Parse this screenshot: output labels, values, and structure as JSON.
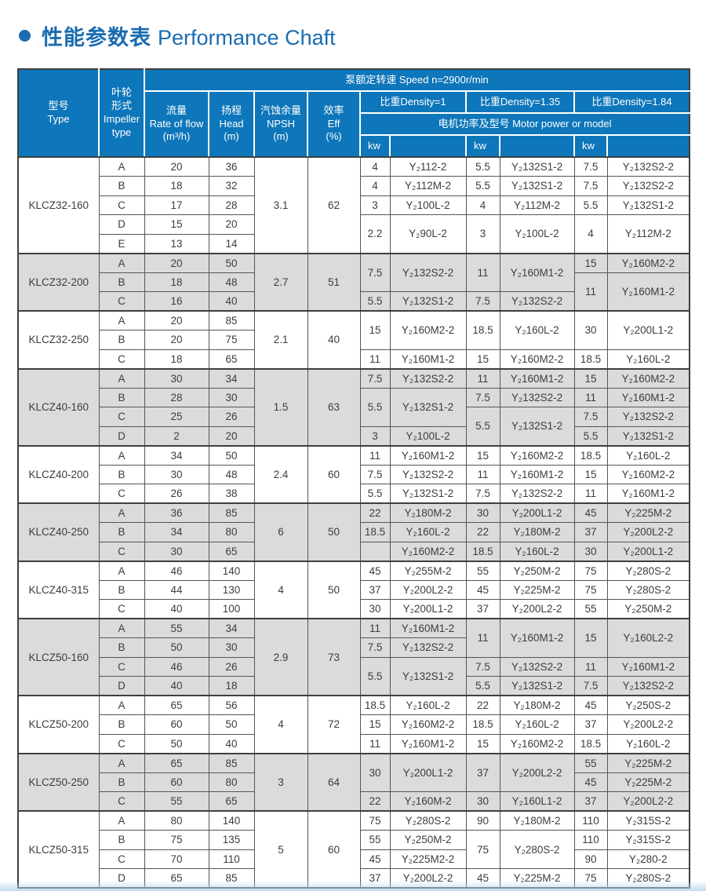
{
  "page": {
    "title_cn": "性能参数表",
    "title_en": "Performance Chaft",
    "accent_color": "#1a6cb0",
    "header_bg": "#0e76ba",
    "shade_color": "#dbdbdb"
  },
  "table": {
    "speed_header": "泵额定转速 Speed n=2900r/min",
    "col_type": "型号\nType",
    "col_impeller": "叶轮\n形式\nImpeller\ntype",
    "col_flow": "流量\nRate of flow\n(m³/h)",
    "col_head": "扬程\nHead\n(m)",
    "col_npsh": "汽蚀余量\nNPSH\n(m)",
    "col_eff": "效率\nEff\n(%)",
    "density_headers": [
      "比重Density=1",
      "比重Density=1.35",
      "比重Density=1.84"
    ],
    "motor_header": "电机功率及型号 Motor power or model",
    "kw_label": "kw",
    "groups": [
      {
        "model": "KLCZ32-160",
        "shade": false,
        "npsh": "3.1",
        "eff": "62",
        "rows": [
          {
            "impeller": "A",
            "flow": "20",
            "head": "36",
            "motors": [
              {
                "kw": "4",
                "model": "Y₂112-2"
              },
              {
                "kw": "5.5",
                "model": "Y₂132S1-2"
              },
              {
                "kw": "7.5",
                "model": "Y₂132S2-2"
              }
            ]
          },
          {
            "impeller": "B",
            "flow": "18",
            "head": "32",
            "motors": [
              {
                "kw": "4",
                "model": "Y₂112M-2"
              },
              {
                "kw": "5.5",
                "model": "Y₂132S1-2"
              },
              {
                "kw": "7.5",
                "model": "Y₂132S2-2"
              }
            ]
          },
          {
            "impeller": "C",
            "flow": "17",
            "head": "28",
            "motors": [
              {
                "kw": "3",
                "model": "Y₂100L-2"
              },
              {
                "kw": "4",
                "model": "Y₂112M-2"
              },
              {
                "kw": "5.5",
                "model": "Y₂132S1-2"
              }
            ]
          },
          {
            "impeller": "D",
            "flow": "15",
            "head": "20",
            "motors": [
              {
                "kw": "2.2",
                "model": "Y₂90L-2",
                "span": 2
              },
              {
                "kw": "3",
                "model": "Y₂100L-2",
                "span": 2
              },
              {
                "kw": "4",
                "model": "Y₂112M-2",
                "span": 2
              }
            ]
          },
          {
            "impeller": "E",
            "flow": "13",
            "head": "14",
            "motors": [
              null,
              null,
              null
            ]
          }
        ]
      },
      {
        "model": "KLCZ32-200",
        "shade": true,
        "npsh": "2.7",
        "eff": "51",
        "rows": [
          {
            "impeller": "A",
            "flow": "20",
            "head": "50",
            "motors": [
              {
                "kw": "7.5",
                "model": "Y₂132S2-2",
                "span": 2
              },
              {
                "kw": "11",
                "model": "Y₂160M1-2",
                "span": 2
              },
              {
                "kw": "15",
                "model": "Y₂160M2-2"
              }
            ]
          },
          {
            "impeller": "B",
            "flow": "18",
            "head": "48",
            "motors": [
              null,
              null,
              {
                "kw": "11",
                "model": "Y₂160M1-2",
                "span": 2
              }
            ]
          },
          {
            "impeller": "C",
            "flow": "16",
            "head": "40",
            "motors": [
              {
                "kw": "5.5",
                "model": "Y₂132S1-2"
              },
              {
                "kw": "7.5",
                "model": "Y₂132S2-2"
              },
              null
            ]
          }
        ]
      },
      {
        "model": "KLCZ32-250",
        "shade": false,
        "npsh": "2.1",
        "eff": "40",
        "rows": [
          {
            "impeller": "A",
            "flow": "20",
            "head": "85",
            "motors": [
              {
                "kw": "15",
                "model": "Y₂160M2-2",
                "span": 2
              },
              {
                "kw": "18.5",
                "model": "Y₂160L-2",
                "span": 2
              },
              {
                "kw": "30",
                "model": "Y₂200L1-2",
                "span": 2
              }
            ]
          },
          {
            "impeller": "B",
            "flow": "20",
            "head": "75",
            "motors": [
              null,
              null,
              null
            ]
          },
          {
            "impeller": "C",
            "flow": "18",
            "head": "65",
            "motors": [
              {
                "kw": "11",
                "model": "Y₂160M1-2"
              },
              {
                "kw": "15",
                "model": "Y₂160M2-2"
              },
              {
                "kw": "18.5",
                "model": "Y₂160L-2"
              }
            ]
          }
        ]
      },
      {
        "model": "KLCZ40-160",
        "shade": true,
        "npsh": "1.5",
        "eff": "63",
        "rows": [
          {
            "impeller": "A",
            "flow": "30",
            "head": "34",
            "motors": [
              {
                "kw": "7.5",
                "model": "Y₂132S2-2"
              },
              {
                "kw": "11",
                "model": "Y₂160M1-2"
              },
              {
                "kw": "15",
                "model": "Y₂160M2-2"
              }
            ]
          },
          {
            "impeller": "B",
            "flow": "28",
            "head": "30",
            "motors": [
              {
                "kw": "5.5",
                "model": "Y₂132S1-2",
                "span": 2
              },
              {
                "kw": "7.5",
                "model": "Y₂132S2-2"
              },
              {
                "kw": "11",
                "model": "Y₂160M1-2"
              }
            ]
          },
          {
            "impeller": "C",
            "flow": "25",
            "head": "26",
            "motors": [
              null,
              {
                "kw": "5.5",
                "model": "Y₂132S1-2",
                "span": 2
              },
              {
                "kw": "7.5",
                "model": "Y₂132S2-2"
              }
            ]
          },
          {
            "impeller": "D",
            "flow": "2",
            "head": "20",
            "motors": [
              {
                "kw": "3",
                "model": "Y₂100L-2"
              },
              null,
              {
                "kw": "5.5",
                "model": "Y₂132S1-2"
              }
            ]
          }
        ]
      },
      {
        "model": "KLCZ40-200",
        "shade": false,
        "npsh": "2.4",
        "eff": "60",
        "rows": [
          {
            "impeller": "A",
            "flow": "34",
            "head": "50",
            "motors": [
              {
                "kw": "11",
                "model": "Y₂160M1-2"
              },
              {
                "kw": "15",
                "model": "Y₂160M2-2"
              },
              {
                "kw": "18.5",
                "model": "Y₂160L-2"
              }
            ]
          },
          {
            "impeller": "B",
            "flow": "30",
            "head": "48",
            "motors": [
              {
                "kw": "7.5",
                "model": "Y₂132S2-2"
              },
              {
                "kw": "11",
                "model": "Y₂160M1-2"
              },
              {
                "kw": "15",
                "model": "Y₂160M2-2"
              }
            ]
          },
          {
            "impeller": "C",
            "flow": "26",
            "head": "38",
            "motors": [
              {
                "kw": "5.5",
                "model": "Y₂132S1-2"
              },
              {
                "kw": "7.5",
                "model": "Y₂132S2-2"
              },
              {
                "kw": "11",
                "model": "Y₂160M1-2"
              }
            ]
          }
        ]
      },
      {
        "model": "KLCZ40-250",
        "shade": true,
        "npsh": "6",
        "eff": "50",
        "rows": [
          {
            "impeller": "A",
            "flow": "36",
            "head": "85",
            "motors": [
              {
                "kw": "22",
                "model": "Y₂180M-2"
              },
              {
                "kw": "30",
                "model": "Y₂200L1-2"
              },
              {
                "kw": "45",
                "model": "Y₂225M-2"
              }
            ]
          },
          {
            "impeller": "B",
            "flow": "34",
            "head": "80",
            "motors": [
              {
                "kw": "18.5",
                "model": "Y₂160L-2"
              },
              {
                "kw": "22",
                "model": "Y₂180M-2"
              },
              {
                "kw": "37",
                "model": "Y₂200L2-2"
              }
            ]
          },
          {
            "impeller": "C",
            "flow": "30",
            "head": "65",
            "motors": [
              {
                "kw": "",
                "model": "Y₂160M2-2"
              },
              {
                "kw": "18.5",
                "model": "Y₂160L-2"
              },
              {
                "kw": "30",
                "model": "Y₂200L1-2"
              }
            ]
          }
        ]
      },
      {
        "model": "KLCZ40-315",
        "shade": false,
        "npsh": "4",
        "eff": "50",
        "rows": [
          {
            "impeller": "A",
            "flow": "46",
            "head": "140",
            "motors": [
              {
                "kw": "45",
                "model": "Y₂255M-2"
              },
              {
                "kw": "55",
                "model": "Y₂250M-2"
              },
              {
                "kw": "75",
                "model": "Y₂280S-2"
              }
            ]
          },
          {
            "impeller": "B",
            "flow": "44",
            "head": "130",
            "motors": [
              {
                "kw": "37",
                "model": "Y₂200L2-2"
              },
              {
                "kw": "45",
                "model": "Y₂225M-2"
              },
              {
                "kw": "75",
                "model": "Y₂280S-2"
              }
            ]
          },
          {
            "impeller": "C",
            "flow": "40",
            "head": "100",
            "motors": [
              {
                "kw": "30",
                "model": "Y₂200L1-2"
              },
              {
                "kw": "37",
                "model": "Y₂200L2-2"
              },
              {
                "kw": "55",
                "model": "Y₂250M-2"
              }
            ]
          }
        ]
      },
      {
        "model": "KLCZ50-160",
        "shade": true,
        "npsh": "2.9",
        "eff": "73",
        "rows": [
          {
            "impeller": "A",
            "flow": "55",
            "head": "34",
            "motors": [
              {
                "kw": "11",
                "model": "Y₂160M1-2"
              },
              {
                "kw": "11",
                "model": "Y₂160M1-2",
                "span": 2
              },
              {
                "kw": "15",
                "model": "Y₂160L2-2",
                "span": 2
              }
            ]
          },
          {
            "impeller": "B",
            "flow": "50",
            "head": "30",
            "motors": [
              {
                "kw": "7.5",
                "model": "Y₂132S2-2"
              },
              null,
              null
            ]
          },
          {
            "impeller": "C",
            "flow": "46",
            "head": "26",
            "motors": [
              {
                "kw": "5.5",
                "model": "Y₂132S1-2",
                "span": 2
              },
              {
                "kw": "7.5",
                "model": "Y₂132S2-2"
              },
              {
                "kw": "11",
                "model": "Y₂160M1-2"
              }
            ]
          },
          {
            "impeller": "D",
            "flow": "40",
            "head": "18",
            "motors": [
              null,
              {
                "kw": "5.5",
                "model": "Y₂132S1-2"
              },
              {
                "kw": "7.5",
                "model": "Y₂132S2-2"
              }
            ]
          }
        ]
      },
      {
        "model": "KLCZ50-200",
        "shade": false,
        "npsh": "4",
        "eff": "72",
        "rows": [
          {
            "impeller": "A",
            "flow": "65",
            "head": "56",
            "motors": [
              {
                "kw": "18.5",
                "model": "Y₂160L-2"
              },
              {
                "kw": "22",
                "model": "Y₂180M-2"
              },
              {
                "kw": "45",
                "model": "Y₂250S-2"
              }
            ]
          },
          {
            "impeller": "B",
            "flow": "60",
            "head": "50",
            "motors": [
              {
                "kw": "15",
                "model": "Y₂160M2-2"
              },
              {
                "kw": "18.5",
                "model": "Y₂160L-2"
              },
              {
                "kw": "37",
                "model": "Y₂200L2-2"
              }
            ]
          },
          {
            "impeller": "C",
            "flow": "50",
            "head": "40",
            "motors": [
              {
                "kw": "11",
                "model": "Y₂160M1-2"
              },
              {
                "kw": "15",
                "model": "Y₂160M2-2"
              },
              {
                "kw": "18.5",
                "model": "Y₂160L-2"
              }
            ]
          }
        ]
      },
      {
        "model": "KLCZ50-250",
        "shade": true,
        "npsh": "3",
        "eff": "64",
        "rows": [
          {
            "impeller": "A",
            "flow": "65",
            "head": "85",
            "motors": [
              {
                "kw": "30",
                "model": "Y₂200L1-2",
                "span": 2
              },
              {
                "kw": "37",
                "model": "Y₂200L2-2",
                "span": 2
              },
              {
                "kw": "55",
                "model": "Y₂225M-2"
              }
            ]
          },
          {
            "impeller": "B",
            "flow": "60",
            "head": "80",
            "motors": [
              null,
              null,
              {
                "kw": "45",
                "model": "Y₂225M-2"
              }
            ]
          },
          {
            "impeller": "C",
            "flow": "55",
            "head": "65",
            "motors": [
              {
                "kw": "22",
                "model": "Y₂160M-2"
              },
              {
                "kw": "30",
                "model": "Y₂160L1-2"
              },
              {
                "kw": "37",
                "model": "Y₂200L2-2"
              }
            ]
          }
        ]
      },
      {
        "model": "KLCZ50-315",
        "shade": false,
        "npsh": "5",
        "eff": "60",
        "rows": [
          {
            "impeller": "A",
            "flow": "80",
            "head": "140",
            "motors": [
              {
                "kw": "75",
                "model": "Y₂280S-2"
              },
              {
                "kw": "90",
                "model": "Y₂180M-2"
              },
              {
                "kw": "110",
                "model": "Y₂315S-2"
              }
            ]
          },
          {
            "impeller": "B",
            "flow": "75",
            "head": "135",
            "motors": [
              {
                "kw": "55",
                "model": "Y₂250M-2"
              },
              {
                "kw": "75",
                "model": "Y₂280S-2",
                "span": 2
              },
              {
                "kw": "110",
                "model": "Y₂315S-2"
              }
            ]
          },
          {
            "impeller": "C",
            "flow": "70",
            "head": "110",
            "motors": [
              {
                "kw": "45",
                "model": "Y₂225M2-2"
              },
              null,
              {
                "kw": "90",
                "model": "Y₂280-2"
              }
            ]
          },
          {
            "impeller": "D",
            "flow": "65",
            "head": "85",
            "motors": [
              {
                "kw": "37",
                "model": "Y₂200L2-2"
              },
              {
                "kw": "45",
                "model": "Y₂225M-2"
              },
              {
                "kw": "75",
                "model": "Y₂280S-2"
              }
            ]
          }
        ]
      }
    ]
  }
}
